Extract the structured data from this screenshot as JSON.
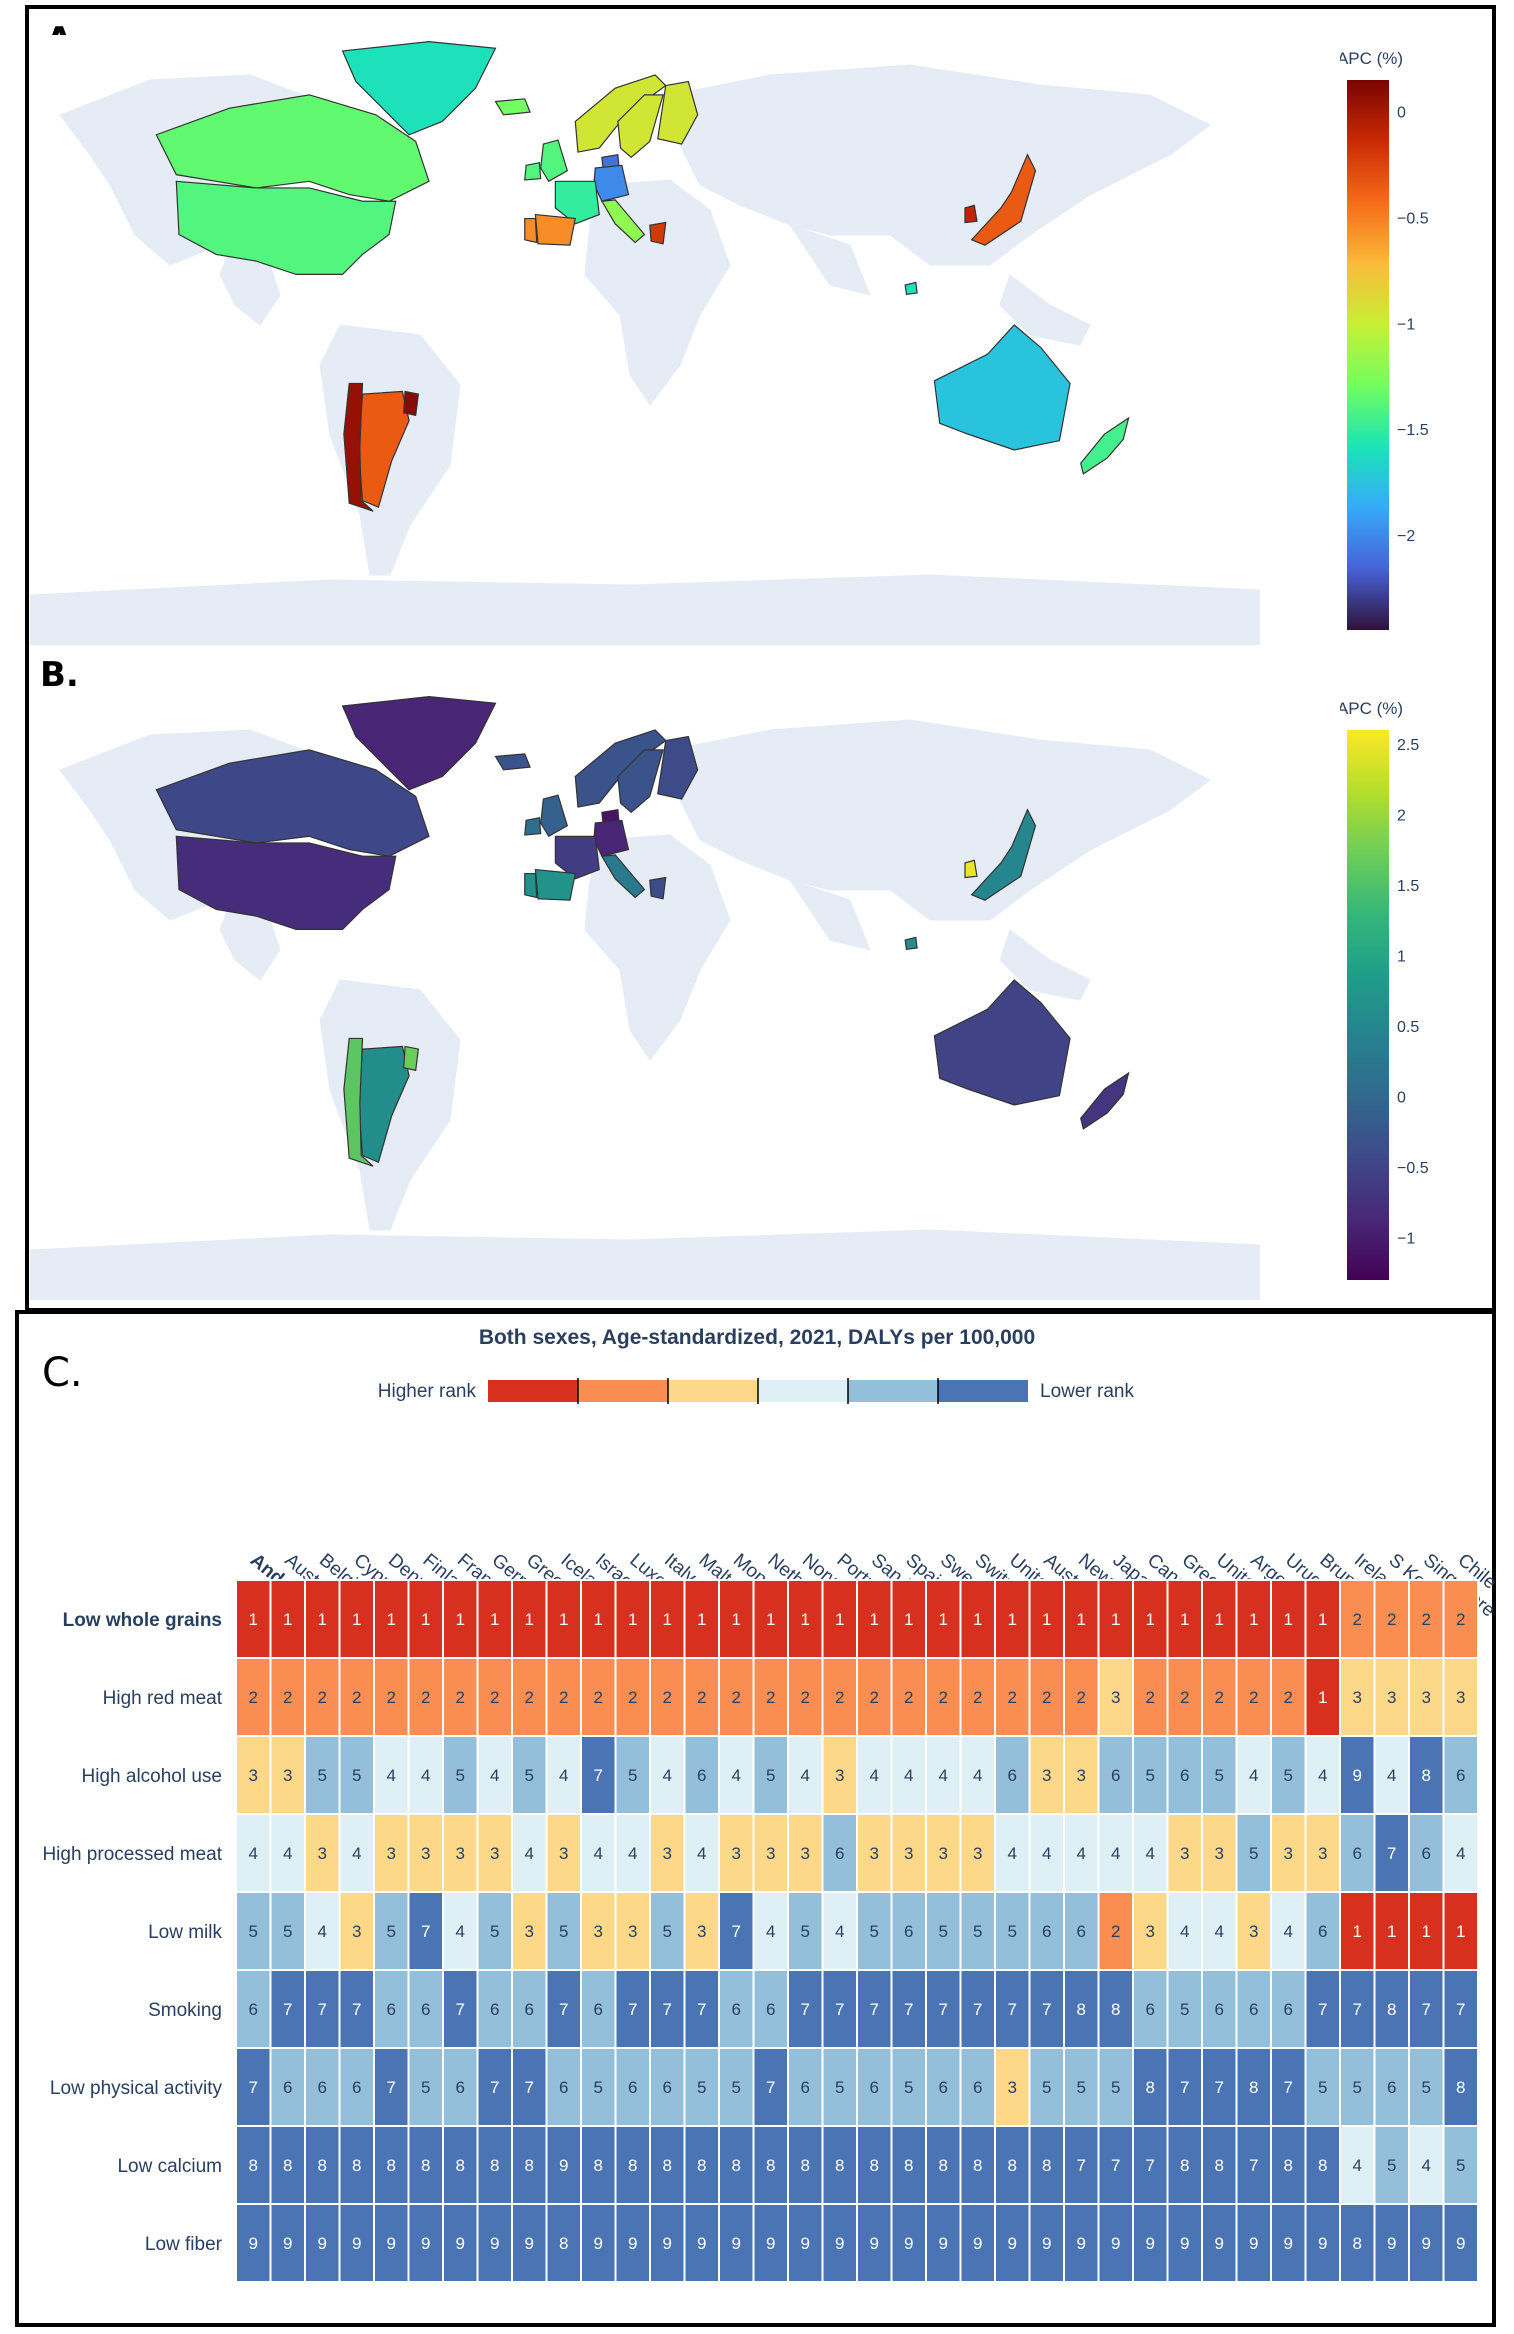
{
  "panel_a": {
    "label": "A.",
    "colorbar": {
      "title": "APC (%)",
      "ticks": [
        "0",
        "−0.5",
        "−1",
        "−1.5",
        "−2"
      ],
      "tick_values": [
        0,
        -0.5,
        -1,
        -1.5,
        -2
      ],
      "range": [
        -2.45,
        0.15
      ],
      "colorscale": [
        "#30123b",
        "#4662d7",
        "#36aaf9",
        "#1ae4b6",
        "#72fe5e",
        "#c7ef34",
        "#faba39",
        "#f66b19",
        "#ca2a04",
        "#7a0403"
      ]
    }
  },
  "panel_b": {
    "label": "B.",
    "colorbar": {
      "title": "APC (%)",
      "ticks": [
        "2.5",
        "2",
        "1.5",
        "1",
        "0.5",
        "0",
        "−0.5",
        "−1"
      ],
      "tick_values": [
        2.5,
        2,
        1.5,
        1,
        0.5,
        0,
        -0.5,
        -1
      ],
      "range": [
        -1.3,
        2.6
      ],
      "colorscale": [
        "#440154",
        "#482878",
        "#3e4989",
        "#31688e",
        "#26828e",
        "#1f9e89",
        "#35b779",
        "#6ece58",
        "#b5de2b",
        "#fde725"
      ]
    }
  },
  "panel_c": {
    "label": "C.",
    "title": "Both sexes, Age-standardized, 2021, DALYs per 100,000",
    "legend": {
      "higher": "Higher rank",
      "lower": "Lower rank",
      "colors": [
        "#d7301f",
        "#f98d52",
        "#fdd888",
        "#def0f5",
        "#93bfdb",
        "#4a74b4"
      ]
    },
    "rank_colors": {
      "1": "#d7301f",
      "2": "#f98d52",
      "3": "#fdd888",
      "4": "#def0f5",
      "5": "#93bfdb",
      "6": "#93bfdb",
      "7": "#4a74b4",
      "8": "#4a74b4",
      "9": "#4a74b4"
    }
  },
  "chart_data": [
    {
      "type": "map",
      "panel": "A",
      "colorbar_title": "APC (%)",
      "color_range": [
        -2.45,
        0.15
      ],
      "regions": [
        {
          "name": "Canada",
          "value": -1.35
        },
        {
          "name": "United States",
          "value": -1.4
        },
        {
          "name": "Greenland",
          "value": -1.6
        },
        {
          "name": "Iceland",
          "value": -1.3
        },
        {
          "name": "Norway",
          "value": -0.95
        },
        {
          "name": "Sweden",
          "value": -0.95
        },
        {
          "name": "Finland",
          "value": -0.95
        },
        {
          "name": "Denmark",
          "value": -2.1
        },
        {
          "name": "Ireland",
          "value": -1.4
        },
        {
          "name": "United Kingdom",
          "value": -1.4
        },
        {
          "name": "Germany",
          "value": -2.0
        },
        {
          "name": "France",
          "value": -1.5
        },
        {
          "name": "Spain",
          "value": -0.55
        },
        {
          "name": "Portugal",
          "value": -0.55
        },
        {
          "name": "Italy",
          "value": -1.2
        },
        {
          "name": "Greece",
          "value": -0.2
        },
        {
          "name": "Japan",
          "value": -0.35
        },
        {
          "name": "South Korea",
          "value": -0.1
        },
        {
          "name": "Australia",
          "value": -1.75
        },
        {
          "name": "New Zealand",
          "value": -1.45
        },
        {
          "name": "Argentina",
          "value": -0.35
        },
        {
          "name": "Chile",
          "value": 0.05
        },
        {
          "name": "Uruguay",
          "value": 0.1
        },
        {
          "name": "Brunei",
          "value": -1.6
        }
      ]
    },
    {
      "type": "map",
      "panel": "B",
      "colorbar_title": "APC (%)",
      "color_range": [
        -1.3,
        2.6
      ],
      "regions": [
        {
          "name": "Canada",
          "value": -0.45
        },
        {
          "name": "United States",
          "value": -0.8
        },
        {
          "name": "Greenland",
          "value": -0.9
        },
        {
          "name": "Iceland",
          "value": -0.3
        },
        {
          "name": "Norway",
          "value": -0.3
        },
        {
          "name": "Sweden",
          "value": -0.3
        },
        {
          "name": "Finland",
          "value": -0.4
        },
        {
          "name": "Denmark",
          "value": -1.1
        },
        {
          "name": "Ireland",
          "value": 0.1
        },
        {
          "name": "United Kingdom",
          "value": -0.1
        },
        {
          "name": "Germany",
          "value": -0.9
        },
        {
          "name": "France",
          "value": -0.6
        },
        {
          "name": "Spain",
          "value": 0.7
        },
        {
          "name": "Portugal",
          "value": 0.7
        },
        {
          "name": "Italy",
          "value": 0.3
        },
        {
          "name": "Greece",
          "value": -0.4
        },
        {
          "name": "Japan",
          "value": 0.5
        },
        {
          "name": "South Korea",
          "value": 2.5
        },
        {
          "name": "Australia",
          "value": -0.5
        },
        {
          "name": "New Zealand",
          "value": -0.7
        },
        {
          "name": "Argentina",
          "value": 0.6
        },
        {
          "name": "Chile",
          "value": 1.6
        },
        {
          "name": "Uruguay",
          "value": 1.7
        },
        {
          "name": "Brunei",
          "value": 0.6
        }
      ]
    },
    {
      "type": "heatmap",
      "panel": "C",
      "title": "Both sexes, Age-standardized, 2021, DALYs per 100,000",
      "columns": [
        "Andorra",
        "Austria",
        "Belgium",
        "Cyprus",
        "Denmark",
        "Finland",
        "France",
        "Germany",
        "Greece",
        "Iceland",
        "Israel",
        "Luxembourg",
        "Italy",
        "Malta",
        "Monaco",
        "Netherlands",
        "Norway",
        "Portugal",
        "San Marino",
        "Spain",
        "Sweden",
        "Switzerland",
        "United Kingdom",
        "Australia",
        "New Zealand",
        "Japan",
        "Canada",
        "Greenland",
        "United States",
        "Argentina",
        "Uruguay",
        "Brunei Darussalam",
        "Ireland",
        "S Korea",
        "Singapore",
        "Chile"
      ],
      "rows": [
        "Low whole grains",
        "High red meat",
        "High alcohol use",
        "High processed meat",
        "Low milk",
        "Smoking",
        "Low physical activity",
        "Low calcium",
        "Low fiber"
      ],
      "values": [
        [
          1,
          1,
          1,
          1,
          1,
          1,
          1,
          1,
          1,
          1,
          1,
          1,
          1,
          1,
          1,
          1,
          1,
          1,
          1,
          1,
          1,
          1,
          1,
          1,
          1,
          1,
          1,
          1,
          1,
          1,
          1,
          1,
          2,
          2,
          2,
          2
        ],
        [
          2,
          2,
          2,
          2,
          2,
          2,
          2,
          2,
          2,
          2,
          2,
          2,
          2,
          2,
          2,
          2,
          2,
          2,
          2,
          2,
          2,
          2,
          2,
          2,
          2,
          3,
          2,
          2,
          2,
          2,
          2,
          1,
          3,
          3,
          3,
          3
        ],
        [
          3,
          3,
          5,
          5,
          4,
          4,
          5,
          4,
          5,
          4,
          7,
          5,
          4,
          6,
          4,
          5,
          4,
          3,
          4,
          4,
          4,
          4,
          6,
          3,
          3,
          6,
          5,
          6,
          5,
          4,
          5,
          4,
          9,
          4,
          8,
          6
        ],
        [
          4,
          4,
          3,
          4,
          3,
          3,
          3,
          3,
          4,
          3,
          4,
          4,
          3,
          4,
          3,
          3,
          3,
          6,
          3,
          3,
          3,
          3,
          4,
          4,
          4,
          4,
          4,
          3,
          3,
          5,
          3,
          3,
          6,
          7,
          6,
          4
        ],
        [
          5,
          5,
          4,
          3,
          5,
          7,
          4,
          5,
          3,
          5,
          3,
          3,
          5,
          3,
          7,
          4,
          5,
          4,
          5,
          6,
          5,
          5,
          5,
          6,
          6,
          2,
          3,
          4,
          4,
          3,
          4,
          6,
          1,
          1,
          1,
          1
        ],
        [
          6,
          7,
          7,
          7,
          6,
          6,
          7,
          6,
          6,
          7,
          6,
          7,
          7,
          7,
          6,
          6,
          7,
          7,
          7,
          7,
          7,
          7,
          7,
          7,
          8,
          8,
          6,
          5,
          6,
          6,
          6,
          7,
          7,
          8,
          7,
          7
        ],
        [
          7,
          6,
          6,
          6,
          7,
          5,
          6,
          7,
          7,
          6,
          5,
          6,
          6,
          5,
          5,
          7,
          6,
          5,
          6,
          5,
          6,
          6,
          3,
          5,
          5,
          5,
          8,
          7,
          7,
          8,
          7,
          5,
          5,
          6,
          5,
          8
        ],
        [
          8,
          8,
          8,
          8,
          8,
          8,
          8,
          8,
          8,
          9,
          8,
          8,
          8,
          8,
          8,
          8,
          8,
          8,
          8,
          8,
          8,
          8,
          8,
          8,
          7,
          7,
          7,
          8,
          8,
          7,
          8,
          8,
          4,
          5,
          4,
          5
        ],
        [
          9,
          9,
          9,
          9,
          9,
          9,
          9,
          9,
          9,
          8,
          9,
          9,
          9,
          9,
          9,
          9,
          9,
          9,
          9,
          9,
          9,
          9,
          9,
          9,
          9,
          9,
          9,
          9,
          9,
          9,
          9,
          9,
          8,
          9,
          9,
          9
        ]
      ],
      "bold_labels": [
        "Andorra",
        "Low whole grains"
      ]
    }
  ]
}
